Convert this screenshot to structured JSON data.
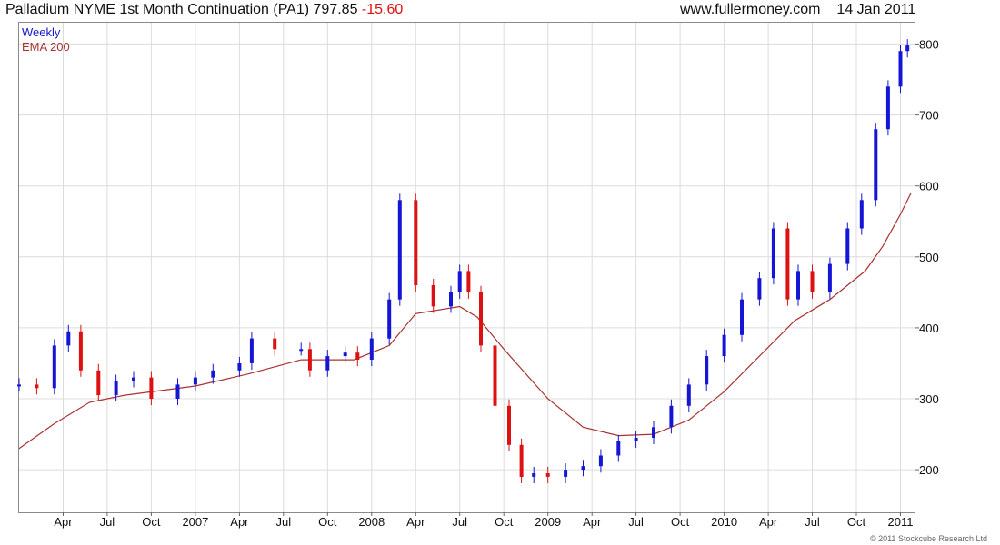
{
  "header": {
    "title": "Palladium NYME 1st Month Continuation (PA1)",
    "last": "797.85",
    "change": "-15.60",
    "site": "www.fullermoney.com",
    "date": "14 Jan 2011"
  },
  "footer": {
    "copyright": "© 2011 Stockcube Research Ltd"
  },
  "colors": {
    "up": "#1515d6",
    "down": "#dd1111",
    "ema": "#a83232",
    "grid": "#dcdcdc"
  },
  "chart_data": {
    "type": "line",
    "legend": [
      "Weekly",
      "EMA 200"
    ],
    "legend_position": "top-left",
    "grid": true,
    "ylim": [
      140,
      830
    ],
    "yticks": [
      200,
      300,
      400,
      500,
      600,
      700,
      800
    ],
    "xlim": [
      2006.0,
      2011.08
    ],
    "xticks": [
      {
        "label": "Apr",
        "x": 2006.25
      },
      {
        "label": "Jul",
        "x": 2006.5
      },
      {
        "label": "Oct",
        "x": 2006.75
      },
      {
        "label": "2007",
        "x": 2007.0
      },
      {
        "label": "Apr",
        "x": 2007.25
      },
      {
        "label": "Jul",
        "x": 2007.5
      },
      {
        "label": "Oct",
        "x": 2007.75
      },
      {
        "label": "2008",
        "x": 2008.0
      },
      {
        "label": "Apr",
        "x": 2008.25
      },
      {
        "label": "Jul",
        "x": 2008.5
      },
      {
        "label": "Oct",
        "x": 2008.75
      },
      {
        "label": "2009",
        "x": 2009.0
      },
      {
        "label": "Apr",
        "x": 2009.25
      },
      {
        "label": "Jul",
        "x": 2009.5
      },
      {
        "label": "Oct",
        "x": 2009.75
      },
      {
        "label": "2010",
        "x": 2010.0
      },
      {
        "label": "Apr",
        "x": 2010.25
      },
      {
        "label": "Jul",
        "x": 2010.5
      },
      {
        "label": "Oct",
        "x": 2010.75
      },
      {
        "label": "2011",
        "x": 2011.0
      }
    ],
    "series": [
      {
        "name": "Weekly",
        "points": [
          {
            "x": 2006.0,
            "y": 320
          },
          {
            "x": 2006.1,
            "y": 315
          },
          {
            "x": 2006.2,
            "y": 375
          },
          {
            "x": 2006.28,
            "y": 395
          },
          {
            "x": 2006.35,
            "y": 340
          },
          {
            "x": 2006.45,
            "y": 305
          },
          {
            "x": 2006.55,
            "y": 325
          },
          {
            "x": 2006.65,
            "y": 330
          },
          {
            "x": 2006.75,
            "y": 300
          },
          {
            "x": 2006.9,
            "y": 320
          },
          {
            "x": 2007.0,
            "y": 330
          },
          {
            "x": 2007.1,
            "y": 340
          },
          {
            "x": 2007.25,
            "y": 350
          },
          {
            "x": 2007.32,
            "y": 385
          },
          {
            "x": 2007.45,
            "y": 370
          },
          {
            "x": 2007.6,
            "y": 370
          },
          {
            "x": 2007.65,
            "y": 340
          },
          {
            "x": 2007.75,
            "y": 360
          },
          {
            "x": 2007.85,
            "y": 365
          },
          {
            "x": 2007.92,
            "y": 355
          },
          {
            "x": 2008.0,
            "y": 385
          },
          {
            "x": 2008.1,
            "y": 440
          },
          {
            "x": 2008.16,
            "y": 580
          },
          {
            "x": 2008.25,
            "y": 460
          },
          {
            "x": 2008.35,
            "y": 430
          },
          {
            "x": 2008.45,
            "y": 450
          },
          {
            "x": 2008.5,
            "y": 480
          },
          {
            "x": 2008.55,
            "y": 450
          },
          {
            "x": 2008.62,
            "y": 375
          },
          {
            "x": 2008.7,
            "y": 290
          },
          {
            "x": 2008.78,
            "y": 235
          },
          {
            "x": 2008.85,
            "y": 190
          },
          {
            "x": 2008.92,
            "y": 195
          },
          {
            "x": 2009.0,
            "y": 190
          },
          {
            "x": 2009.1,
            "y": 200
          },
          {
            "x": 2009.2,
            "y": 205
          },
          {
            "x": 2009.3,
            "y": 220
          },
          {
            "x": 2009.4,
            "y": 240
          },
          {
            "x": 2009.5,
            "y": 245
          },
          {
            "x": 2009.6,
            "y": 260
          },
          {
            "x": 2009.7,
            "y": 290
          },
          {
            "x": 2009.8,
            "y": 320
          },
          {
            "x": 2009.9,
            "y": 360
          },
          {
            "x": 2010.0,
            "y": 390
          },
          {
            "x": 2010.1,
            "y": 440
          },
          {
            "x": 2010.2,
            "y": 470
          },
          {
            "x": 2010.28,
            "y": 540
          },
          {
            "x": 2010.36,
            "y": 440
          },
          {
            "x": 2010.42,
            "y": 480
          },
          {
            "x": 2010.5,
            "y": 450
          },
          {
            "x": 2010.6,
            "y": 490
          },
          {
            "x": 2010.7,
            "y": 540
          },
          {
            "x": 2010.78,
            "y": 580
          },
          {
            "x": 2010.86,
            "y": 680
          },
          {
            "x": 2010.93,
            "y": 740
          },
          {
            "x": 2011.0,
            "y": 790
          },
          {
            "x": 2011.04,
            "y": 797.85
          }
        ]
      },
      {
        "name": "EMA 200",
        "points": [
          {
            "x": 2006.0,
            "y": 230
          },
          {
            "x": 2006.2,
            "y": 265
          },
          {
            "x": 2006.4,
            "y": 295
          },
          {
            "x": 2006.6,
            "y": 305
          },
          {
            "x": 2007.0,
            "y": 318
          },
          {
            "x": 2007.3,
            "y": 335
          },
          {
            "x": 2007.6,
            "y": 355
          },
          {
            "x": 2007.9,
            "y": 355
          },
          {
            "x": 2008.1,
            "y": 375
          },
          {
            "x": 2008.25,
            "y": 420
          },
          {
            "x": 2008.5,
            "y": 430
          },
          {
            "x": 2008.6,
            "y": 415
          },
          {
            "x": 2008.75,
            "y": 370
          },
          {
            "x": 2009.0,
            "y": 300
          },
          {
            "x": 2009.2,
            "y": 260
          },
          {
            "x": 2009.4,
            "y": 248
          },
          {
            "x": 2009.6,
            "y": 250
          },
          {
            "x": 2009.8,
            "y": 270
          },
          {
            "x": 2010.0,
            "y": 310
          },
          {
            "x": 2010.2,
            "y": 360
          },
          {
            "x": 2010.4,
            "y": 410
          },
          {
            "x": 2010.6,
            "y": 440
          },
          {
            "x": 2010.8,
            "y": 480
          },
          {
            "x": 2010.9,
            "y": 515
          },
          {
            "x": 2011.0,
            "y": 560
          },
          {
            "x": 2011.06,
            "y": 590
          }
        ]
      }
    ]
  }
}
